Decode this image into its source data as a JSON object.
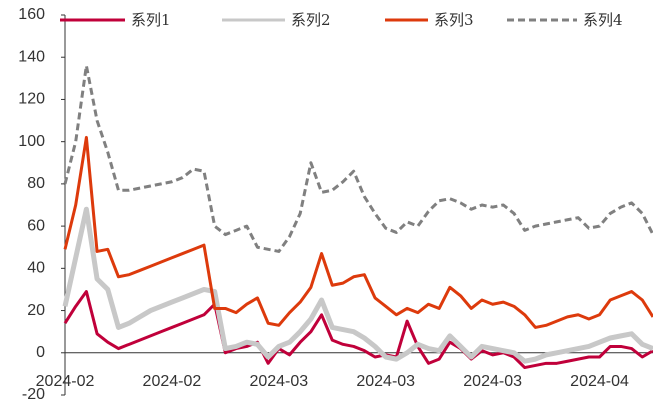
{
  "chart_data": {
    "type": "line",
    "categories": [
      "2024-02",
      null,
      null,
      null,
      null,
      null,
      null,
      null,
      null,
      null,
      "2024-02",
      null,
      null,
      null,
      null,
      null,
      null,
      null,
      null,
      null,
      "2024-03",
      null,
      null,
      null,
      null,
      null,
      null,
      null,
      null,
      null,
      "2024-03",
      null,
      null,
      null,
      null,
      null,
      null,
      null,
      null,
      null,
      "2024-03",
      null,
      null,
      null,
      null,
      null,
      null,
      null,
      null,
      null,
      "2024-04",
      null,
      null,
      null,
      null,
      null
    ],
    "series": [
      {
        "name": "系列1",
        "color": "#c0003a",
        "dash": false,
        "values": [
          14,
          22,
          29,
          9,
          5,
          2,
          4,
          6,
          8,
          10,
          12,
          14,
          16,
          18,
          23,
          0,
          2,
          3,
          5,
          -5,
          2,
          -1,
          5,
          10,
          18,
          6,
          4,
          3,
          1,
          -2,
          -1,
          -2,
          15,
          3,
          -5,
          -3,
          5,
          2,
          -3,
          1,
          -1,
          0,
          -2,
          -7,
          -6,
          -5,
          -5,
          -4,
          -3,
          -2,
          -2,
          3,
          3,
          2,
          -2,
          1
        ]
      },
      {
        "name": "系列2",
        "color": "#c8c8c8",
        "dash": false,
        "values": [
          22,
          45,
          68,
          35,
          30,
          12,
          14,
          17,
          20,
          22,
          24,
          26,
          28,
          30,
          29,
          2,
          3,
          5,
          4,
          -2,
          3,
          5,
          10,
          16,
          25,
          12,
          11,
          10,
          7,
          3,
          -2,
          -3,
          0,
          4,
          2,
          1,
          8,
          3,
          -2,
          3,
          2,
          1,
          0,
          -4,
          -3,
          -1,
          0,
          1,
          2,
          3,
          5,
          7,
          8,
          9,
          4,
          2
        ]
      },
      {
        "name": "系列3",
        "color": "#dd3a0c",
        "dash": false,
        "values": [
          49,
          70,
          102,
          48,
          49,
          36,
          37,
          39,
          41,
          43,
          45,
          47,
          49,
          51,
          21,
          21,
          19,
          23,
          26,
          14,
          13,
          19,
          24,
          31,
          47,
          32,
          33,
          36,
          37,
          26,
          22,
          18,
          21,
          19,
          23,
          21,
          31,
          27,
          21,
          25,
          23,
          24,
          22,
          18,
          12,
          13,
          15,
          17,
          18,
          16,
          18,
          25,
          27,
          29,
          25,
          17
        ]
      },
      {
        "name": "系列4",
        "color": "#808080",
        "dash": true,
        "values": [
          80,
          100,
          136,
          110,
          95,
          77,
          77,
          78,
          79,
          80,
          81,
          83,
          87,
          86,
          60,
          56,
          58,
          60,
          50,
          49,
          48,
          55,
          66,
          90,
          76,
          77,
          81,
          86,
          74,
          66,
          59,
          57,
          62,
          60,
          67,
          72,
          73,
          71,
          68,
          70,
          69,
          70,
          66,
          58,
          60,
          61,
          62,
          63,
          64,
          59,
          60,
          66,
          69,
          71,
          66,
          56
        ]
      }
    ],
    "ylim": [
      -20,
      160
    ],
    "yticks": [
      -20,
      0,
      20,
      40,
      60,
      80,
      100,
      120,
      140,
      160
    ]
  }
}
